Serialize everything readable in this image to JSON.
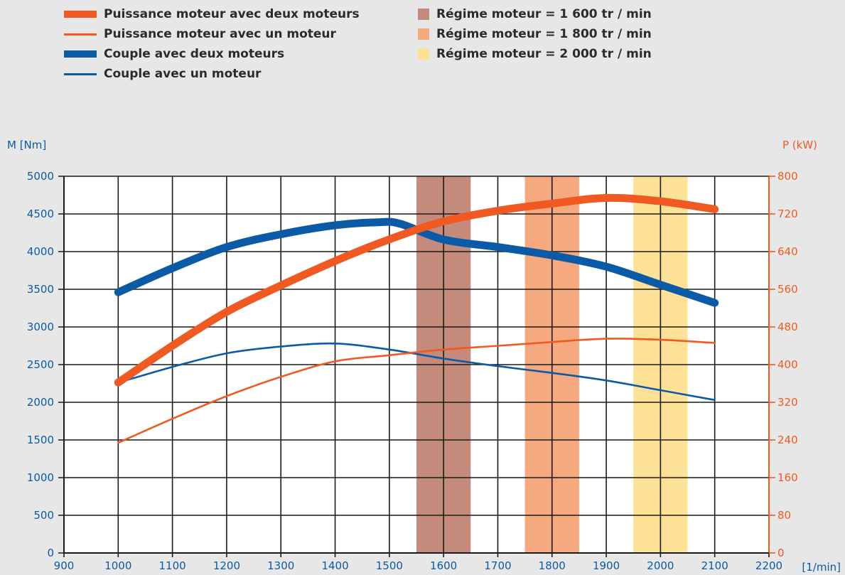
{
  "legend": {
    "lines": [
      {
        "label": "Puissance moteur avec deux moteurs",
        "color": "#f05a22",
        "style": "thick"
      },
      {
        "label": "Puissance moteur avec un moteur",
        "color": "#f05a22",
        "style": "thin"
      },
      {
        "label": "Couple avec deux moteurs",
        "color": "#0b5aa6",
        "style": "thick"
      },
      {
        "label": "Couple avec un moteur",
        "color": "#0b5aa6",
        "style": "thin"
      }
    ],
    "bands": [
      {
        "label": "Régime moteur = 1 600 tr / min",
        "color": "#c48a7b"
      },
      {
        "label": "Régime moteur = 1 800 tr / min",
        "color": "#f6a87f"
      },
      {
        "label": "Régime moteur = 2 000 tr / min",
        "color": "#fce196"
      }
    ]
  },
  "chart_data": {
    "type": "line",
    "xlim": [
      900,
      2200
    ],
    "x_ticks": [
      "900",
      "1000",
      "1100",
      "1200",
      "1300",
      "1400",
      "1500",
      "1600",
      "1700",
      "1800",
      "1900",
      "2000",
      "2100",
      "2200"
    ],
    "xunit": "[1/min]",
    "ylabel_left": "M [Nm]",
    "ylim_left": [
      0,
      5000
    ],
    "y_ticks_left": [
      "0",
      "500",
      "1000",
      "1500",
      "2000",
      "2500",
      "3000",
      "3500",
      "4000",
      "4500",
      "5000"
    ],
    "ylabel_right": "P (kW)",
    "ylim_right": [
      0,
      800
    ],
    "y_ticks_right": [
      "0",
      "80",
      "160",
      "240",
      "320",
      "400",
      "480",
      "560",
      "640",
      "720",
      "800"
    ],
    "grid": true,
    "bands": [
      {
        "center": 1600,
        "range": [
          1550,
          1650
        ],
        "color": "#c48a7b"
      },
      {
        "center": 1800,
        "range": [
          1750,
          1850
        ],
        "color": "#f6a87f"
      },
      {
        "center": 2000,
        "range": [
          1950,
          2050
        ],
        "color": "#fce196"
      }
    ],
    "series": [
      {
        "name": "Puissance moteur avec deux moteurs",
        "axis": "right",
        "color": "#f05a22",
        "style": "thick",
        "x": [
          1000,
          1100,
          1200,
          1300,
          1400,
          1500,
          1600,
          1700,
          1800,
          1900,
          2000,
          2100
        ],
        "y": [
          362,
          440,
          512,
          568,
          620,
          666,
          704,
          727,
          742,
          754,
          747,
          730
        ]
      },
      {
        "name": "Puissance moteur avec un moteur",
        "axis": "right",
        "color": "#f05a22",
        "style": "thin",
        "x": [
          1000,
          1100,
          1200,
          1300,
          1400,
          1500,
          1600,
          1700,
          1800,
          1900,
          2000,
          2100
        ],
        "y": [
          234,
          285,
          333,
          374,
          407,
          420,
          432,
          440,
          448,
          455,
          453,
          446
        ]
      },
      {
        "name": "Couple avec deux moteurs",
        "axis": "left",
        "color": "#0b5aa6",
        "style": "thick",
        "x": [
          1000,
          1100,
          1200,
          1300,
          1400,
          1480,
          1520,
          1600,
          1700,
          1800,
          1900,
          2000,
          2100
        ],
        "y": [
          3460,
          3780,
          4060,
          4230,
          4350,
          4390,
          4370,
          4160,
          4060,
          3950,
          3800,
          3560,
          3320
        ]
      },
      {
        "name": "Couple avec un moteur",
        "axis": "left",
        "color": "#0b5aa6",
        "style": "thin",
        "x": [
          1000,
          1100,
          1200,
          1300,
          1400,
          1500,
          1600,
          1700,
          1800,
          1900,
          2000,
          2100
        ],
        "y": [
          2260,
          2470,
          2650,
          2740,
          2780,
          2700,
          2580,
          2480,
          2390,
          2290,
          2160,
          2030
        ]
      }
    ]
  }
}
